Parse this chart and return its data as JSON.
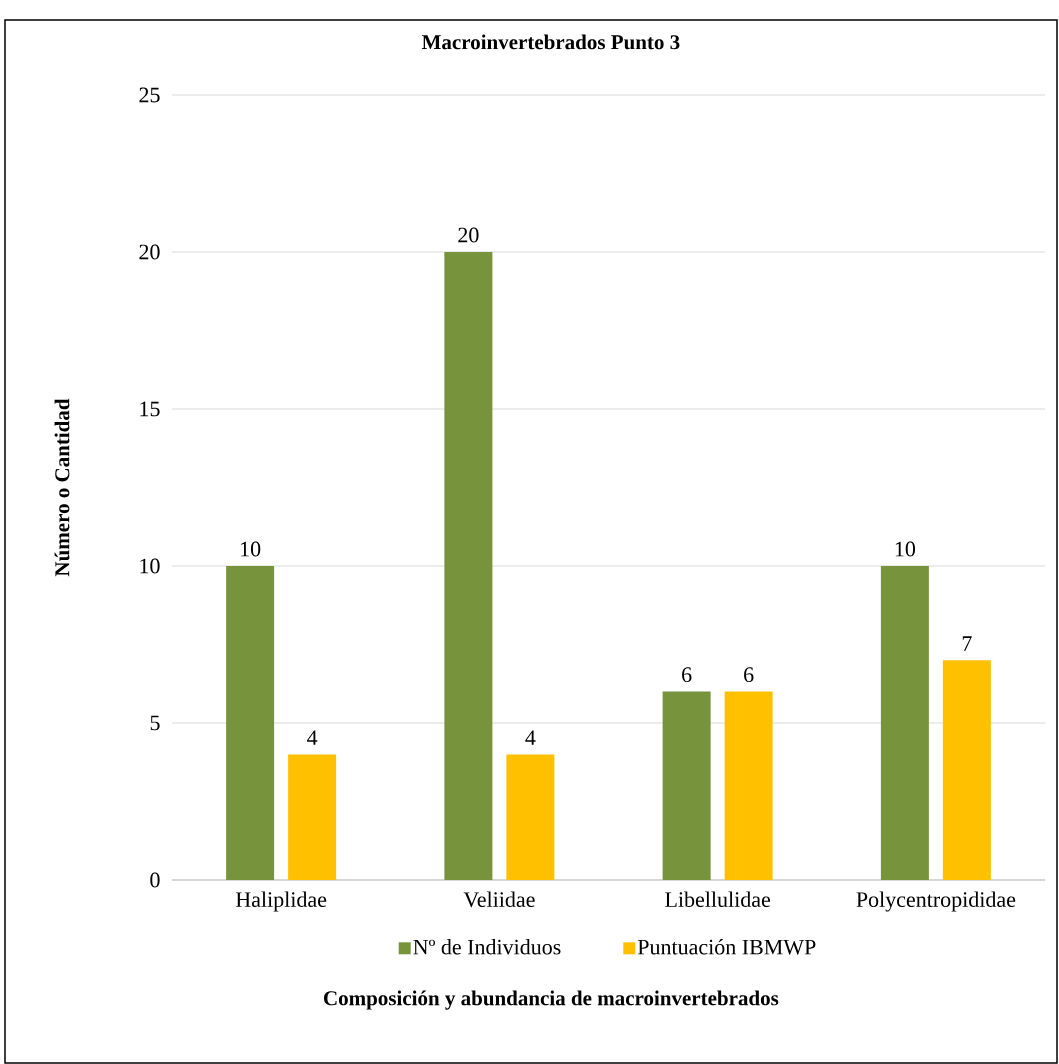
{
  "chart_data": {
    "type": "bar",
    "title": "Macroinvertebrados Punto 3",
    "xlabel": "Composición y abundancia de macroinvertebrados",
    "ylabel": "Número o Cantidad",
    "categories": [
      "Haliplidae",
      "Veliidae",
      "Libellulidae",
      "Polycentropididae"
    ],
    "series": [
      {
        "name": "Nº  de Individuos",
        "color": "#77933c",
        "values": [
          10,
          20,
          6,
          10
        ]
      },
      {
        "name": "Puntuación IBMWP",
        "color": "#ffc000",
        "values": [
          4,
          4,
          6,
          7
        ]
      }
    ],
    "ylim": [
      0,
      25
    ],
    "yticks": [
      0,
      5,
      10,
      15,
      20,
      25
    ],
    "grid": "y",
    "legend": "bottom",
    "data_labels": true
  }
}
